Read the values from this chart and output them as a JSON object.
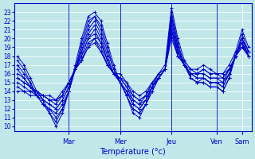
{
  "xlabel": "Température (°c)",
  "bg_color": "#c0e8e8",
  "plot_bg_color": "#c0e8e8",
  "line_color": "#0000cc",
  "marker": "+",
  "ylim": [
    9.5,
    24.0
  ],
  "yticks": [
    10,
    11,
    12,
    13,
    14,
    15,
    16,
    17,
    18,
    19,
    20,
    21,
    22,
    23
  ],
  "day_labels": [
    "Mar",
    "Mer",
    "Jeu",
    "Ven",
    "Sam"
  ],
  "day_tick_positions": [
    8,
    16,
    24,
    31,
    35
  ],
  "day_vline_positions": [
    8,
    16,
    24,
    31
  ],
  "num_points": 37,
  "series": [
    [
      18.0,
      17.0,
      15.5,
      14.0,
      13.0,
      11.5,
      10.0,
      11.5,
      14.0,
      17.0,
      20.0,
      22.5,
      23.0,
      22.0,
      19.5,
      17.0,
      15.0,
      13.5,
      11.5,
      11.0,
      12.5,
      14.5,
      16.0,
      17.0,
      23.5,
      20.0,
      17.5,
      15.5,
      15.0,
      15.0,
      14.5,
      14.5,
      14.0,
      15.5,
      18.5,
      21.0,
      19.0
    ],
    [
      17.5,
      16.5,
      15.0,
      13.5,
      12.5,
      11.5,
      10.5,
      12.0,
      14.0,
      16.5,
      19.5,
      22.0,
      22.5,
      21.5,
      19.0,
      16.5,
      15.0,
      13.5,
      12.0,
      11.5,
      12.5,
      14.0,
      15.5,
      16.5,
      23.0,
      19.5,
      17.0,
      15.5,
      15.0,
      15.0,
      14.5,
      14.5,
      14.0,
      15.5,
      18.0,
      20.5,
      18.5
    ],
    [
      17.0,
      16.0,
      15.0,
      13.5,
      12.5,
      12.0,
      11.0,
      12.0,
      14.0,
      16.5,
      19.0,
      21.5,
      22.5,
      21.0,
      18.5,
      16.5,
      15.0,
      13.5,
      12.0,
      11.5,
      12.5,
      14.0,
      15.5,
      16.5,
      22.5,
      19.0,
      17.0,
      15.5,
      15.0,
      15.5,
      15.0,
      15.0,
      14.5,
      16.0,
      18.0,
      20.0,
      18.5
    ],
    [
      16.5,
      15.5,
      14.5,
      13.5,
      12.5,
      12.0,
      11.5,
      12.5,
      14.0,
      16.5,
      18.5,
      21.0,
      22.0,
      20.5,
      18.0,
      16.0,
      15.0,
      14.0,
      12.5,
      12.0,
      13.0,
      14.5,
      15.5,
      16.5,
      22.5,
      19.0,
      17.0,
      16.0,
      15.5,
      15.5,
      15.0,
      15.0,
      14.5,
      16.0,
      18.0,
      20.0,
      18.0
    ],
    [
      16.0,
      15.5,
      14.5,
      13.5,
      13.0,
      12.5,
      12.0,
      13.0,
      14.5,
      16.5,
      18.5,
      20.5,
      21.5,
      20.0,
      17.5,
      16.0,
      15.0,
      14.0,
      12.5,
      12.0,
      13.0,
      14.5,
      15.5,
      16.5,
      22.0,
      18.5,
      17.0,
      16.0,
      15.5,
      15.5,
      15.0,
      15.0,
      15.0,
      16.0,
      18.0,
      20.0,
      18.0
    ],
    [
      15.5,
      15.0,
      14.5,
      14.0,
      13.0,
      12.5,
      12.0,
      13.0,
      14.5,
      16.5,
      18.0,
      20.0,
      21.0,
      19.5,
      17.5,
      16.0,
      15.0,
      14.0,
      13.0,
      12.5,
      13.0,
      14.5,
      15.5,
      16.5,
      21.5,
      18.5,
      17.0,
      16.0,
      16.0,
      16.0,
      15.5,
      15.5,
      15.0,
      16.5,
      18.0,
      19.5,
      18.0
    ],
    [
      15.5,
      15.0,
      14.5,
      14.0,
      13.5,
      13.0,
      12.5,
      13.5,
      15.0,
      16.5,
      18.0,
      20.0,
      20.5,
      19.5,
      17.5,
      16.0,
      15.5,
      14.5,
      13.0,
      12.5,
      13.5,
      14.5,
      15.5,
      16.5,
      21.0,
      18.5,
      17.0,
      16.0,
      16.0,
      16.0,
      15.5,
      15.5,
      15.5,
      16.5,
      18.0,
      19.5,
      18.0
    ],
    [
      15.0,
      14.5,
      14.0,
      14.0,
      13.5,
      13.0,
      13.0,
      13.5,
      15.0,
      16.5,
      17.5,
      19.5,
      20.0,
      19.0,
      17.0,
      16.0,
      15.5,
      14.5,
      13.5,
      13.0,
      13.5,
      15.0,
      15.5,
      16.5,
      21.0,
      18.0,
      17.0,
      16.0,
      16.0,
      16.5,
      16.0,
      16.0,
      15.5,
      16.5,
      18.0,
      19.0,
      18.0
    ],
    [
      14.5,
      14.0,
      14.0,
      13.5,
      13.5,
      13.0,
      13.0,
      13.5,
      15.0,
      16.5,
      17.5,
      19.0,
      20.0,
      18.5,
      17.0,
      16.0,
      15.5,
      15.0,
      13.5,
      13.0,
      13.5,
      15.0,
      16.0,
      16.5,
      20.5,
      18.0,
      17.0,
      16.5,
      16.0,
      16.5,
      16.0,
      16.0,
      16.0,
      16.5,
      18.0,
      19.0,
      18.0
    ],
    [
      14.0,
      14.0,
      13.5,
      13.5,
      13.5,
      13.5,
      13.0,
      14.0,
      15.0,
      16.5,
      17.5,
      19.0,
      19.5,
      18.5,
      17.0,
      16.0,
      16.0,
      15.0,
      14.0,
      13.5,
      14.0,
      15.0,
      16.0,
      16.5,
      20.0,
      18.0,
      17.5,
      16.5,
      16.5,
      17.0,
      16.5,
      16.0,
      16.0,
      17.0,
      18.5,
      19.0,
      18.5
    ]
  ]
}
